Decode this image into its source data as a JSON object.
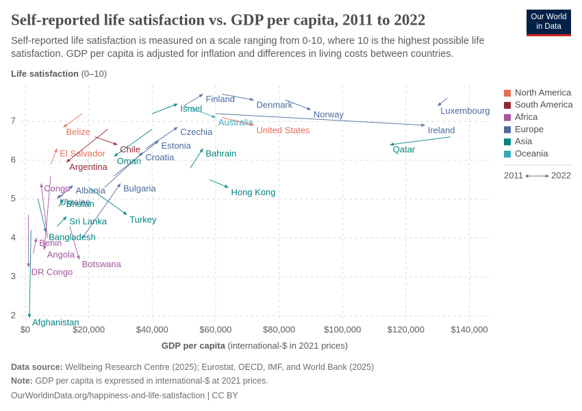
{
  "header": {
    "title": "Self-reported life satisfaction vs. GDP per capita, 2011 to 2022",
    "subtitle": [
      "Self-reported life satisfaction is measured on a scale ranging from 0-10, where 10 is the highest possible life",
      "satisfaction. GDP per capita is adjusted for inflation and differences in living costs between countries."
    ],
    "logo": [
      "Our World",
      "in Data"
    ]
  },
  "chart_data": {
    "type": "connected-scatter",
    "y_label": "Life satisfaction",
    "y_label_unit": "(0–10)",
    "x_label": "GDP per capita",
    "x_label_unit": "(international-$ in 2021 prices)",
    "xlim": [
      -1500,
      147000
    ],
    "ylim": [
      1.84,
      7.92
    ],
    "xticks": [
      {
        "value": 0,
        "label": "$0"
      },
      {
        "value": 20000,
        "label": "$20,000"
      },
      {
        "value": 40000,
        "label": "$40,000"
      },
      {
        "value": 60000,
        "label": "$60,000"
      },
      {
        "value": 80000,
        "label": "$80,000"
      },
      {
        "value": 100000,
        "label": "$100,000"
      },
      {
        "value": 120000,
        "label": "$120,000"
      },
      {
        "value": 140000,
        "label": "$140,000"
      }
    ],
    "yticks": [
      2,
      3,
      4,
      5,
      6,
      7
    ],
    "grid": true,
    "legend": [
      {
        "name": "North America",
        "color": "#e56e5a"
      },
      {
        "name": "South America",
        "color": "#932834"
      },
      {
        "name": "Africa",
        "color": "#a2559c"
      },
      {
        "name": "Europe",
        "color": "#4c6a9c"
      },
      {
        "name": "Asia",
        "color": "#00847e"
      },
      {
        "name": "Oceania",
        "color": "#38aaba"
      }
    ],
    "years": [
      "2011",
      "2022"
    ],
    "series": [
      {
        "name": "Luxembourg",
        "color": "#4c6a9c",
        "x": [
          133000,
          130000
        ],
        "values": [
          7.6,
          7.4
        ]
      },
      {
        "name": "Ireland",
        "color": "#4c6a9c",
        "x": [
          60000,
          126000
        ],
        "values": [
          7.2,
          6.9
        ]
      },
      {
        "name": "Norway",
        "color": "#4c6a9c",
        "x": [
          82000,
          90000
        ],
        "values": [
          7.55,
          7.3
        ]
      },
      {
        "name": "Denmark",
        "color": "#4c6a9c",
        "x": [
          62000,
          72000
        ],
        "values": [
          7.7,
          7.55
        ]
      },
      {
        "name": "Finland",
        "color": "#4c6a9c",
        "x": [
          50000,
          56000
        ],
        "values": [
          7.4,
          7.7
        ]
      },
      {
        "name": "Czechia",
        "color": "#4c6a9c",
        "x": [
          38000,
          48000
        ],
        "values": [
          6.3,
          6.85
        ]
      },
      {
        "name": "Estonia",
        "color": "#4c6a9c",
        "x": [
          28000,
          42000
        ],
        "values": [
          5.6,
          6.5
        ]
      },
      {
        "name": "Croatia",
        "color": "#4c6a9c",
        "x": [
          25000,
          37000
        ],
        "values": [
          5.3,
          6.2
        ]
      },
      {
        "name": "Bulgaria",
        "color": "#4c6a9c",
        "x": [
          18000,
          30000
        ],
        "values": [
          4.0,
          5.4
        ]
      },
      {
        "name": "Albania",
        "color": "#4c6a9c",
        "x": [
          10000,
          15000
        ],
        "values": [
          5.0,
          5.35
        ]
      },
      {
        "name": "Ukraine",
        "color": "#4c6a9c",
        "x": [
          12000,
          10000
        ],
        "values": [
          5.1,
          5.05
        ]
      },
      {
        "name": "Israel",
        "color": "#00847e",
        "x": [
          40000,
          48000
        ],
        "values": [
          7.2,
          7.45
        ]
      },
      {
        "name": "Qatar",
        "color": "#00847e",
        "x": [
          134000,
          115000
        ],
        "values": [
          6.6,
          6.4
        ]
      },
      {
        "name": "Bahrain",
        "color": "#00847e",
        "x": [
          52000,
          56000
        ],
        "values": [
          5.8,
          6.3
        ]
      },
      {
        "name": "Hong Kong",
        "color": "#00847e",
        "x": [
          58000,
          64000
        ],
        "values": [
          5.5,
          5.3
        ]
      },
      {
        "name": "Oman",
        "color": "#00847e",
        "x": [
          40000,
          28000
        ],
        "values": [
          6.8,
          6.1
        ]
      },
      {
        "name": "Turkey",
        "color": "#00847e",
        "x": [
          20000,
          32000
        ],
        "values": [
          5.3,
          4.6
        ]
      },
      {
        "name": "Bhutan",
        "color": "#00847e",
        "x": [
          10500,
          12000
        ],
        "values": [
          4.8,
          5.0
        ]
      },
      {
        "name": "Sri Lanka",
        "color": "#00847e",
        "x": [
          10000,
          13000
        ],
        "values": [
          4.3,
          4.55
        ]
      },
      {
        "name": "Bangladesh",
        "color": "#00847e",
        "x": [
          4000,
          6500
        ],
        "values": [
          5.0,
          4.15
        ]
      },
      {
        "name": "Afghanistan",
        "color": "#00847e",
        "x": [
          1800,
          1300
        ],
        "values": [
          4.2,
          1.95
        ]
      },
      {
        "name": "Australia",
        "color": "#38aaba",
        "x": [
          50000,
          60000
        ],
        "values": [
          7.4,
          7.1
        ]
      },
      {
        "name": "United States",
        "color": "#e56e5a",
        "x": [
          62000,
          72000
        ],
        "values": [
          7.1,
          6.9
        ]
      },
      {
        "name": "Belize",
        "color": "#e56e5a",
        "x": [
          18000,
          12000
        ],
        "values": [
          7.2,
          6.85
        ]
      },
      {
        "name": "El Salvador",
        "color": "#e56e5a",
        "x": [
          8000,
          10000
        ],
        "values": [
          5.9,
          6.3
        ]
      },
      {
        "name": "Chile",
        "color": "#932834",
        "x": [
          22000,
          29000
        ],
        "values": [
          6.6,
          6.4
        ]
      },
      {
        "name": "Argentina",
        "color": "#932834",
        "x": [
          26000,
          13000
        ],
        "values": [
          6.8,
          5.95
        ]
      },
      {
        "name": "Congo",
        "color": "#a2559c",
        "x": [
          7000,
          5000
        ],
        "values": [
          4.0,
          5.4
        ]
      },
      {
        "name": "Benin",
        "color": "#a2559c",
        "x": [
          2500,
          3500
        ],
        "values": [
          3.6,
          4.0
        ]
      },
      {
        "name": "Angola",
        "color": "#a2559c",
        "x": [
          8000,
          6000
        ],
        "values": [
          5.6,
          3.7
        ]
      },
      {
        "name": "Botswana",
        "color": "#a2559c",
        "x": [
          14000,
          17000
        ],
        "values": [
          4.3,
          3.45
        ]
      },
      {
        "name": "DR Congo",
        "color": "#a2559c",
        "x": [
          1000,
          1000
        ],
        "values": [
          4.6,
          3.25
        ]
      }
    ]
  },
  "footer": {
    "source_label": "Data source:",
    "source": "Wellbeing Research Centre (2025); Eurostat, OECD, IMF, and World Bank (2025)",
    "note_label": "Note:",
    "note": "GDP per capita is expressed in international-$ at 2021 prices.",
    "url": "OurWorldinData.org/happiness-and-life-satisfaction | CC BY"
  }
}
